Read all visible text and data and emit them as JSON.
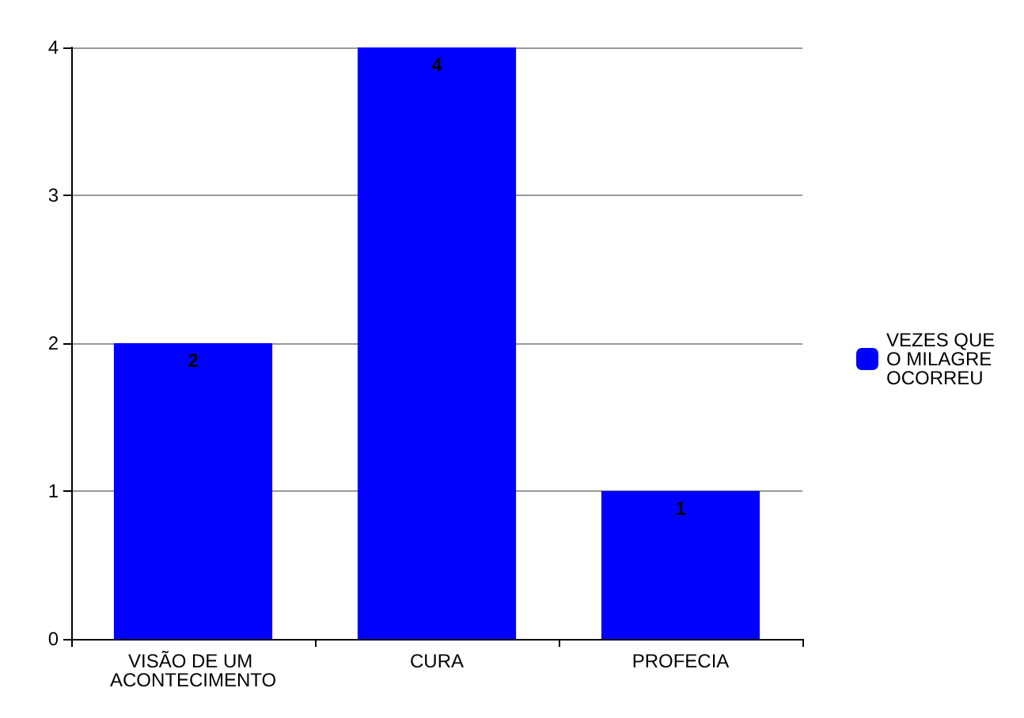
{
  "chart_data": {
    "type": "bar",
    "categories": [
      "VISÃO DE UM ACONTECIMENTO",
      "CURA",
      "PROFECIA"
    ],
    "series": [
      {
        "name": "VEZES QUE O MILAGRE OCORREU",
        "color": "#0000ff",
        "values": [
          2,
          4,
          1
        ]
      }
    ],
    "ylim": [
      0,
      4
    ],
    "yticks": [
      0,
      1,
      2,
      3,
      4
    ],
    "grid": "y",
    "legend": "right",
    "data_labels": true
  }
}
